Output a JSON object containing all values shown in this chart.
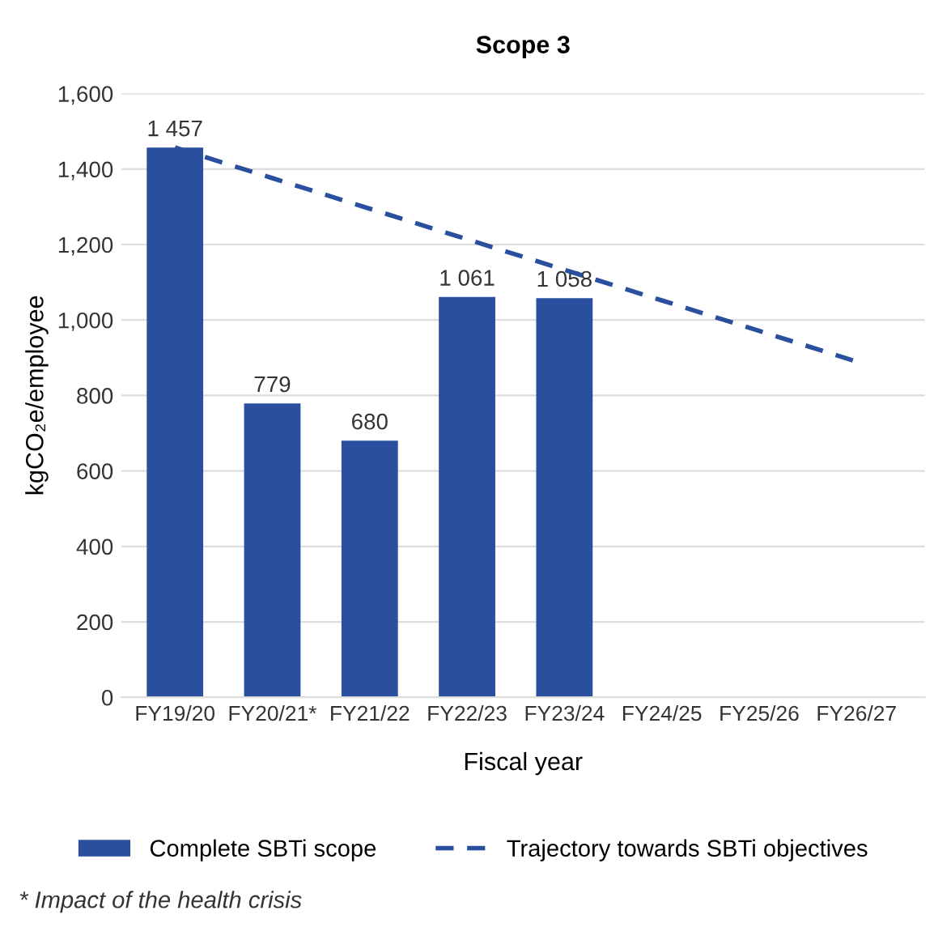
{
  "chart_data": {
    "type": "bar",
    "title": "Scope 3",
    "xlabel": "Fiscal year",
    "ylabel": "kgCO₂e/employee",
    "categories": [
      "FY19/20",
      "FY20/21*",
      "FY21/22",
      "FY22/23",
      "FY23/24",
      "FY24/25",
      "FY25/26",
      "FY26/27"
    ],
    "series": [
      {
        "name": "Complete SBTi scope",
        "color": "#2a4f9f",
        "values": [
          1457,
          779,
          680,
          1061,
          1058,
          null,
          null,
          null
        ],
        "value_labels": [
          "1 457",
          "779",
          "680",
          "1 061",
          "1 058",
          null,
          null,
          null
        ]
      },
      {
        "name": "Trajectory towards SBTi objectives",
        "type": "line",
        "line_style": "dashed",
        "color": "#2a4f9f",
        "values": [
          1457,
          1376,
          1295,
          1214,
          1133,
          1052,
          971,
          890
        ]
      }
    ],
    "ylim": [
      0,
      1600
    ],
    "yticks": [
      {
        "value": 0,
        "label": "0"
      },
      {
        "value": 200,
        "label": "200"
      },
      {
        "value": 400,
        "label": "400"
      },
      {
        "value": 600,
        "label": "600"
      },
      {
        "value": 800,
        "label": "800"
      },
      {
        "value": 1000,
        "label": "1,000"
      },
      {
        "value": 1200,
        "label": "1,200"
      },
      {
        "value": 1400,
        "label": "1,400"
      },
      {
        "value": 1600,
        "label": "1,600"
      }
    ],
    "grid": "y",
    "legend": "bottom",
    "annotations": [
      "* Impact of the health crisis"
    ]
  }
}
